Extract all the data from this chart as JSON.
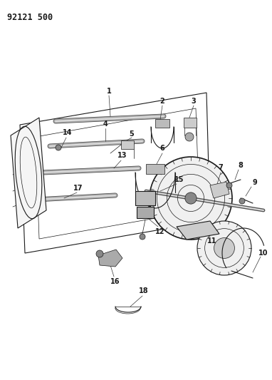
{
  "title": "92121 500",
  "background_color": "#ffffff",
  "line_color": "#1a1a1a",
  "text_color": "#1a1a1a",
  "title_fontsize": 8.5,
  "label_fontsize": 7,
  "fig_width": 3.82,
  "fig_height": 5.33,
  "dpi": 100
}
